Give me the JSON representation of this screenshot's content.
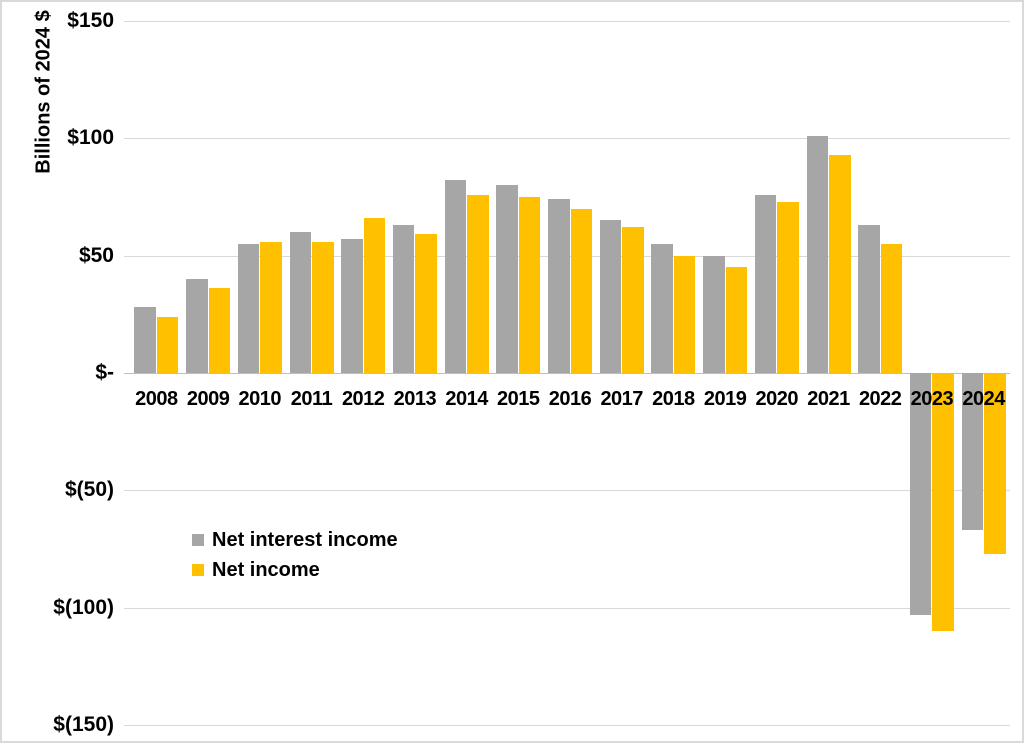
{
  "chart_data": {
    "type": "bar",
    "title": "",
    "ylabel": "Billions of 2024 $",
    "xlabel": "",
    "categories": [
      "2008",
      "2009",
      "2010",
      "2011",
      "2012",
      "2013",
      "2014",
      "2015",
      "2016",
      "2017",
      "2018",
      "2019",
      "2020",
      "2021",
      "2022",
      "2023",
      "2024"
    ],
    "series": [
      {
        "name": "Net interest income",
        "color": "#a6a6a6",
        "values": [
          28,
          40,
          55,
          60,
          57,
          63,
          82,
          80,
          74,
          65,
          55,
          50,
          76,
          101,
          63,
          -103,
          -67
        ]
      },
      {
        "name": "Net income",
        "color": "#ffc000",
        "values": [
          24,
          36,
          56,
          56,
          66,
          59,
          76,
          75,
          70,
          62,
          50,
          45,
          73,
          93,
          55,
          -110,
          -77
        ]
      }
    ],
    "ylim": [
      -150,
      150
    ],
    "yticks": [
      {
        "value": 150,
        "label": "$150"
      },
      {
        "value": 100,
        "label": "$100"
      },
      {
        "value": 50,
        "label": "$50"
      },
      {
        "value": 0,
        "label": "$-"
      },
      {
        "value": -50,
        "label": "$(50)"
      },
      {
        "value": -100,
        "label": "$(100)"
      },
      {
        "value": -150,
        "label": "$(150)"
      }
    ],
    "grid": true,
    "legend_position": "inside-left-middle"
  }
}
